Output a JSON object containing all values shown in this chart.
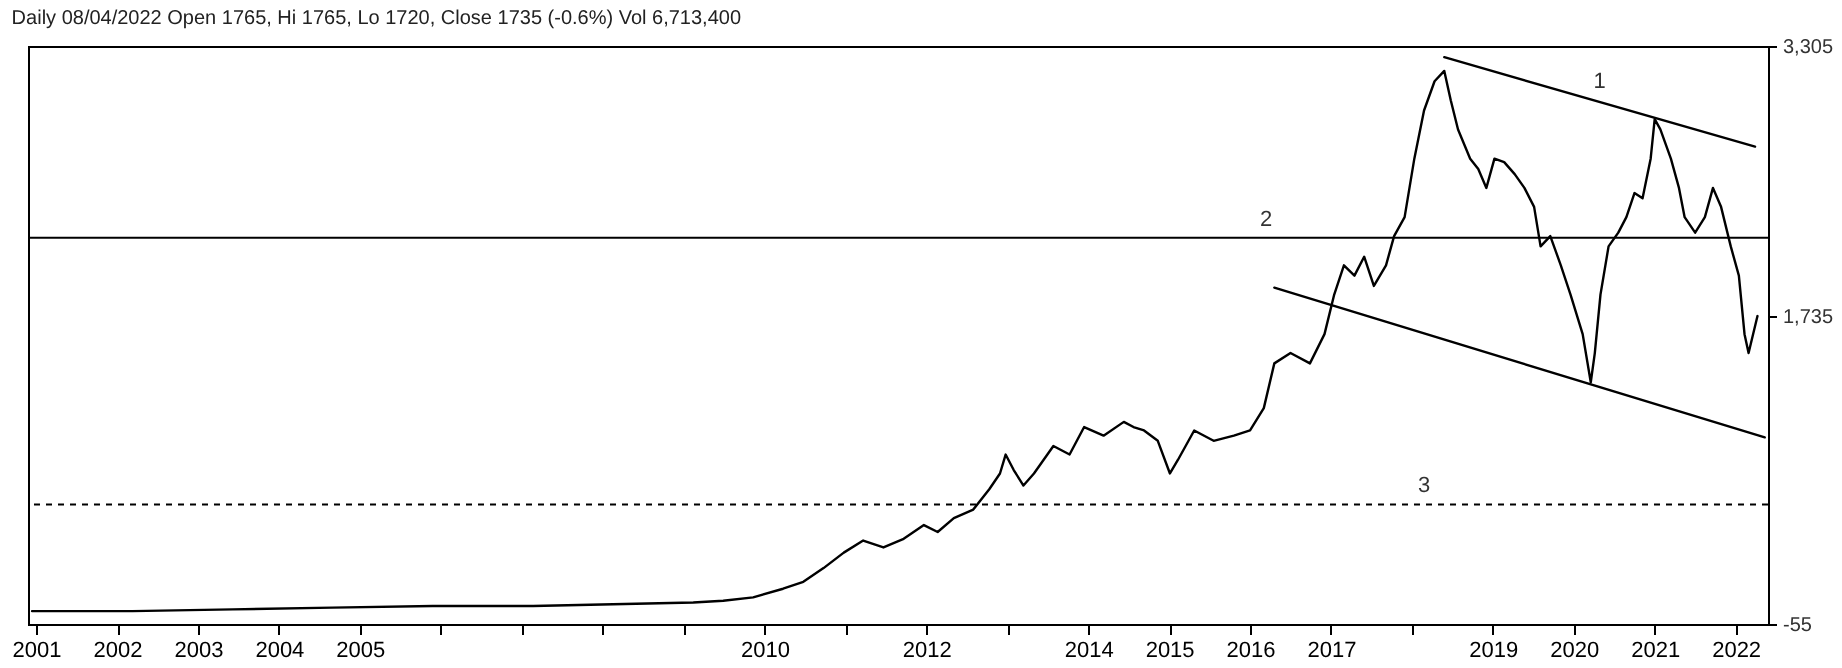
{
  "chart_data": {
    "type": "line",
    "title": "Daily 08/04/2022 Open 1765, Hi 1765, Lo 1720, Close 1735 (-0.6%) Vol 6,713,400",
    "xlim": [
      2000.9,
      2022.4
    ],
    "xticks": [
      2001,
      2002,
      2003,
      2004,
      2005,
      {
        "value": 2006,
        "label": null
      },
      {
        "value": 2007,
        "label": null
      },
      {
        "value": 2008,
        "label": null
      },
      {
        "value": 2009,
        "label": null
      },
      2010,
      {
        "value": 2011,
        "label": null
      },
      2012,
      {
        "value": 2013,
        "label": null
      },
      2014,
      2015,
      2016,
      2017,
      {
        "value": 2018,
        "label": null
      },
      2019,
      2020,
      2021,
      2022
    ],
    "ylim": [
      -55,
      3305
    ],
    "yticks": [
      {
        "value": 3305,
        "label": "3,305"
      },
      {
        "value": 1735,
        "label": "1,735"
      },
      -55
    ],
    "grid": false,
    "marker": "none",
    "series": [
      {
        "color": "#000000",
        "line_style": "solid",
        "x": [
          2000.95,
          2002.19,
          2003.43,
          2004.66,
          2005.9,
          2007.14,
          2008.13,
          2009.12,
          2009.49,
          2009.86,
          2010.23,
          2010.48,
          2010.73,
          2010.98,
          2011.22,
          2011.47,
          2011.72,
          2011.97,
          2012.14,
          2012.34,
          2012.58,
          2012.78,
          2012.91,
          2012.98,
          2013.08,
          2013.2,
          2013.33,
          2013.45,
          2013.57,
          2013.77,
          2013.95,
          2014.19,
          2014.44,
          2014.56,
          2014.69,
          2014.86,
          2015.01,
          2015.11,
          2015.31,
          2015.55,
          2015.8,
          2016.0,
          2016.17,
          2016.3,
          2016.5,
          2016.74,
          2016.92,
          2017.04,
          2017.16,
          2017.29,
          2017.41,
          2017.53,
          2017.68,
          2017.78,
          2017.91,
          2018.03,
          2018.15,
          2018.28,
          2018.4,
          2018.48,
          2018.57,
          2018.72,
          2018.82,
          2018.92,
          2019.02,
          2019.14,
          2019.27,
          2019.39,
          2019.51,
          2019.59,
          2019.71,
          2019.84,
          2019.96,
          2020.11,
          2020.21,
          2020.26,
          2020.33,
          2020.43,
          2020.55,
          2020.65,
          2020.75,
          2020.85,
          2020.95,
          2021.0,
          2021.07,
          2021.2,
          2021.3,
          2021.37,
          2021.5,
          2021.62,
          2021.72,
          2021.82,
          2021.94,
          2022.04,
          2022.11,
          2022.16,
          2022.27
        ],
        "values": [
          20,
          20,
          30,
          40,
          50,
          50,
          60,
          70,
          80,
          100,
          150,
          190,
          270,
          360,
          430,
          390,
          440,
          520,
          480,
          560,
          610,
          730,
          820,
          930,
          840,
          750,
          820,
          900,
          980,
          930,
          1090,
          1040,
          1120,
          1090,
          1070,
          1010,
          820,
          900,
          1070,
          1010,
          1040,
          1070,
          1200,
          1460,
          1520,
          1460,
          1630,
          1860,
          2030,
          1970,
          2080,
          1910,
          2030,
          2200,
          2310,
          2650,
          2930,
          3100,
          3160,
          2990,
          2820,
          2650,
          2590,
          2480,
          2650,
          2630,
          2560,
          2480,
          2370,
          2140,
          2200,
          2030,
          1860,
          1630,
          1350,
          1520,
          1860,
          2140,
          2220,
          2310,
          2450,
          2420,
          2650,
          2880,
          2820,
          2650,
          2480,
          2310,
          2220,
          2310,
          2480,
          2370,
          2140,
          1970,
          1630,
          1520,
          1735
        ]
      },
      {
        "name": "1",
        "color": "#000000",
        "line_style": "solid",
        "x": [
          2018.4,
          2022.24
        ],
        "values": [
          3240,
          2720
        ]
      },
      {
        "color": "#000000",
        "line_style": "solid",
        "x": [
          2016.3,
          2022.36
        ],
        "values": [
          1900,
          1030
        ]
      }
    ],
    "ref_lines": [
      {
        "axis": "y",
        "value": 2190,
        "line_style": "solid",
        "color": "#000000"
      },
      {
        "axis": "y",
        "value": 640,
        "line_style": "dashed",
        "color": "#000000"
      }
    ],
    "annotations": [
      {
        "text": "2",
        "x": 2016.2,
        "y": 2190
      },
      {
        "text": "3",
        "x": 2018.15,
        "y": 640
      }
    ]
  }
}
